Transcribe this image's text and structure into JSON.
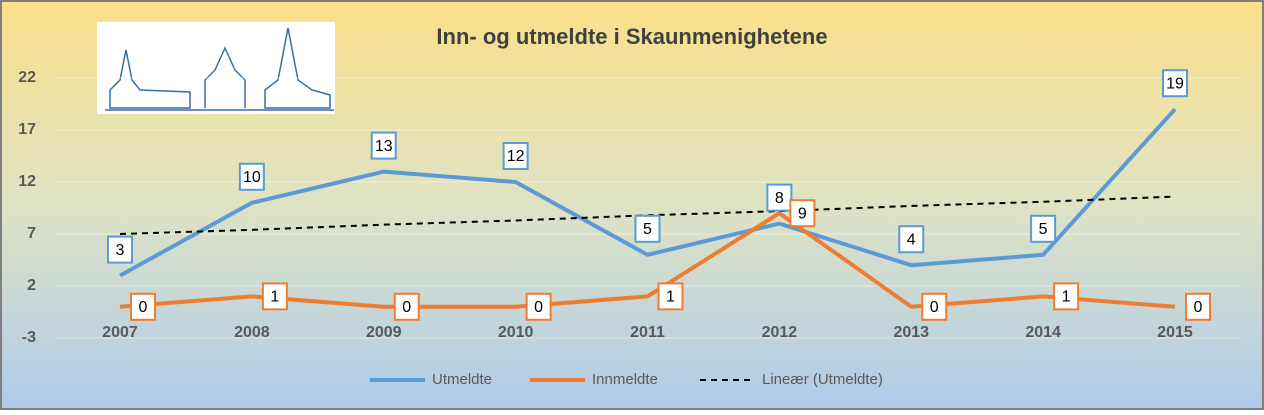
{
  "chart_data": {
    "type": "line",
    "title": "Inn- og utmeldte i Skaunmenighetene",
    "categories": [
      "2007",
      "2008",
      "2009",
      "2010",
      "2011",
      "2012",
      "2013",
      "2014",
      "2015"
    ],
    "series": [
      {
        "name": "Utmeldte",
        "color": "#5b9bd5",
        "values": [
          3,
          10,
          13,
          12,
          5,
          8,
          4,
          5,
          19
        ]
      },
      {
        "name": "Innmeldte",
        "color": "#ed7d31",
        "values": [
          0,
          1,
          0,
          0,
          1,
          9,
          0,
          1,
          0
        ]
      },
      {
        "name": "Lineær (Utmeldte)",
        "color": "#000000",
        "dash": true,
        "values": [
          7.0,
          7.4,
          7.9,
          8.3,
          8.8,
          9.2,
          9.7,
          10.1,
          10.6
        ]
      }
    ],
    "ylim": [
      -3,
      22
    ],
    "yticks": [
      -3,
      2,
      7,
      12,
      17,
      22
    ],
    "grid": true,
    "legend": "bottom"
  }
}
